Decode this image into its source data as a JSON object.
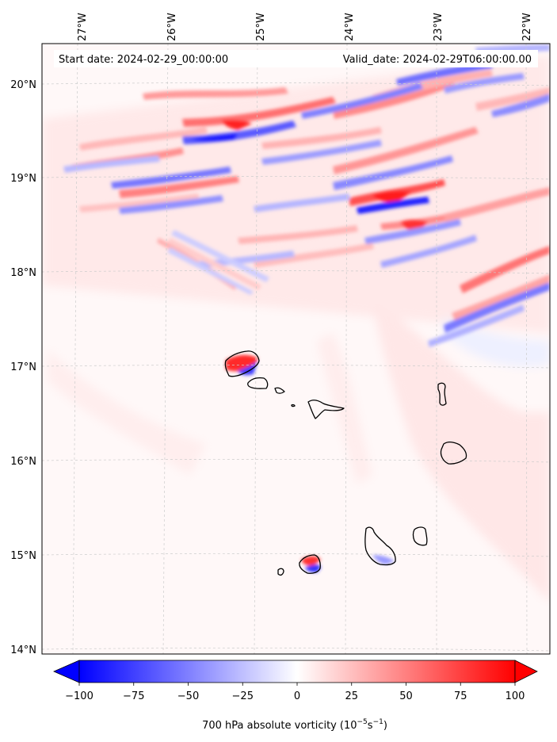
{
  "map": {
    "start_label": "Start date: 2024-02-29_00:00:00",
    "valid_label": "Valid_date: 2024-02-29T06:00:00.00",
    "variable": "700 hPa absolute vorticity",
    "units_prefix": "(10",
    "units_exp1": "−5",
    "units_mid": "s",
    "units_exp2": "−1",
    "units_suffix": ")",
    "lon_ticks": [
      "27°W",
      "26°W",
      "25°W",
      "24°W",
      "23°W",
      "22°W"
    ],
    "lat_ticks": [
      "20°N",
      "19°N",
      "18°N",
      "17°N",
      "16°N",
      "15°N",
      "14°N"
    ],
    "colorbar_ticks": [
      "−100",
      "−75",
      "−50",
      "−25",
      "0",
      "25",
      "50",
      "75",
      "100"
    ],
    "colorbar_values": [
      -100,
      -75,
      -50,
      -25,
      0,
      25,
      50,
      75,
      100
    ],
    "colormap": "bwr",
    "colors": {
      "negative": "#0000ff",
      "zero": "#ffffff",
      "positive": "#ff0000",
      "coast": "#000000",
      "grid": "#cccccc"
    }
  }
}
